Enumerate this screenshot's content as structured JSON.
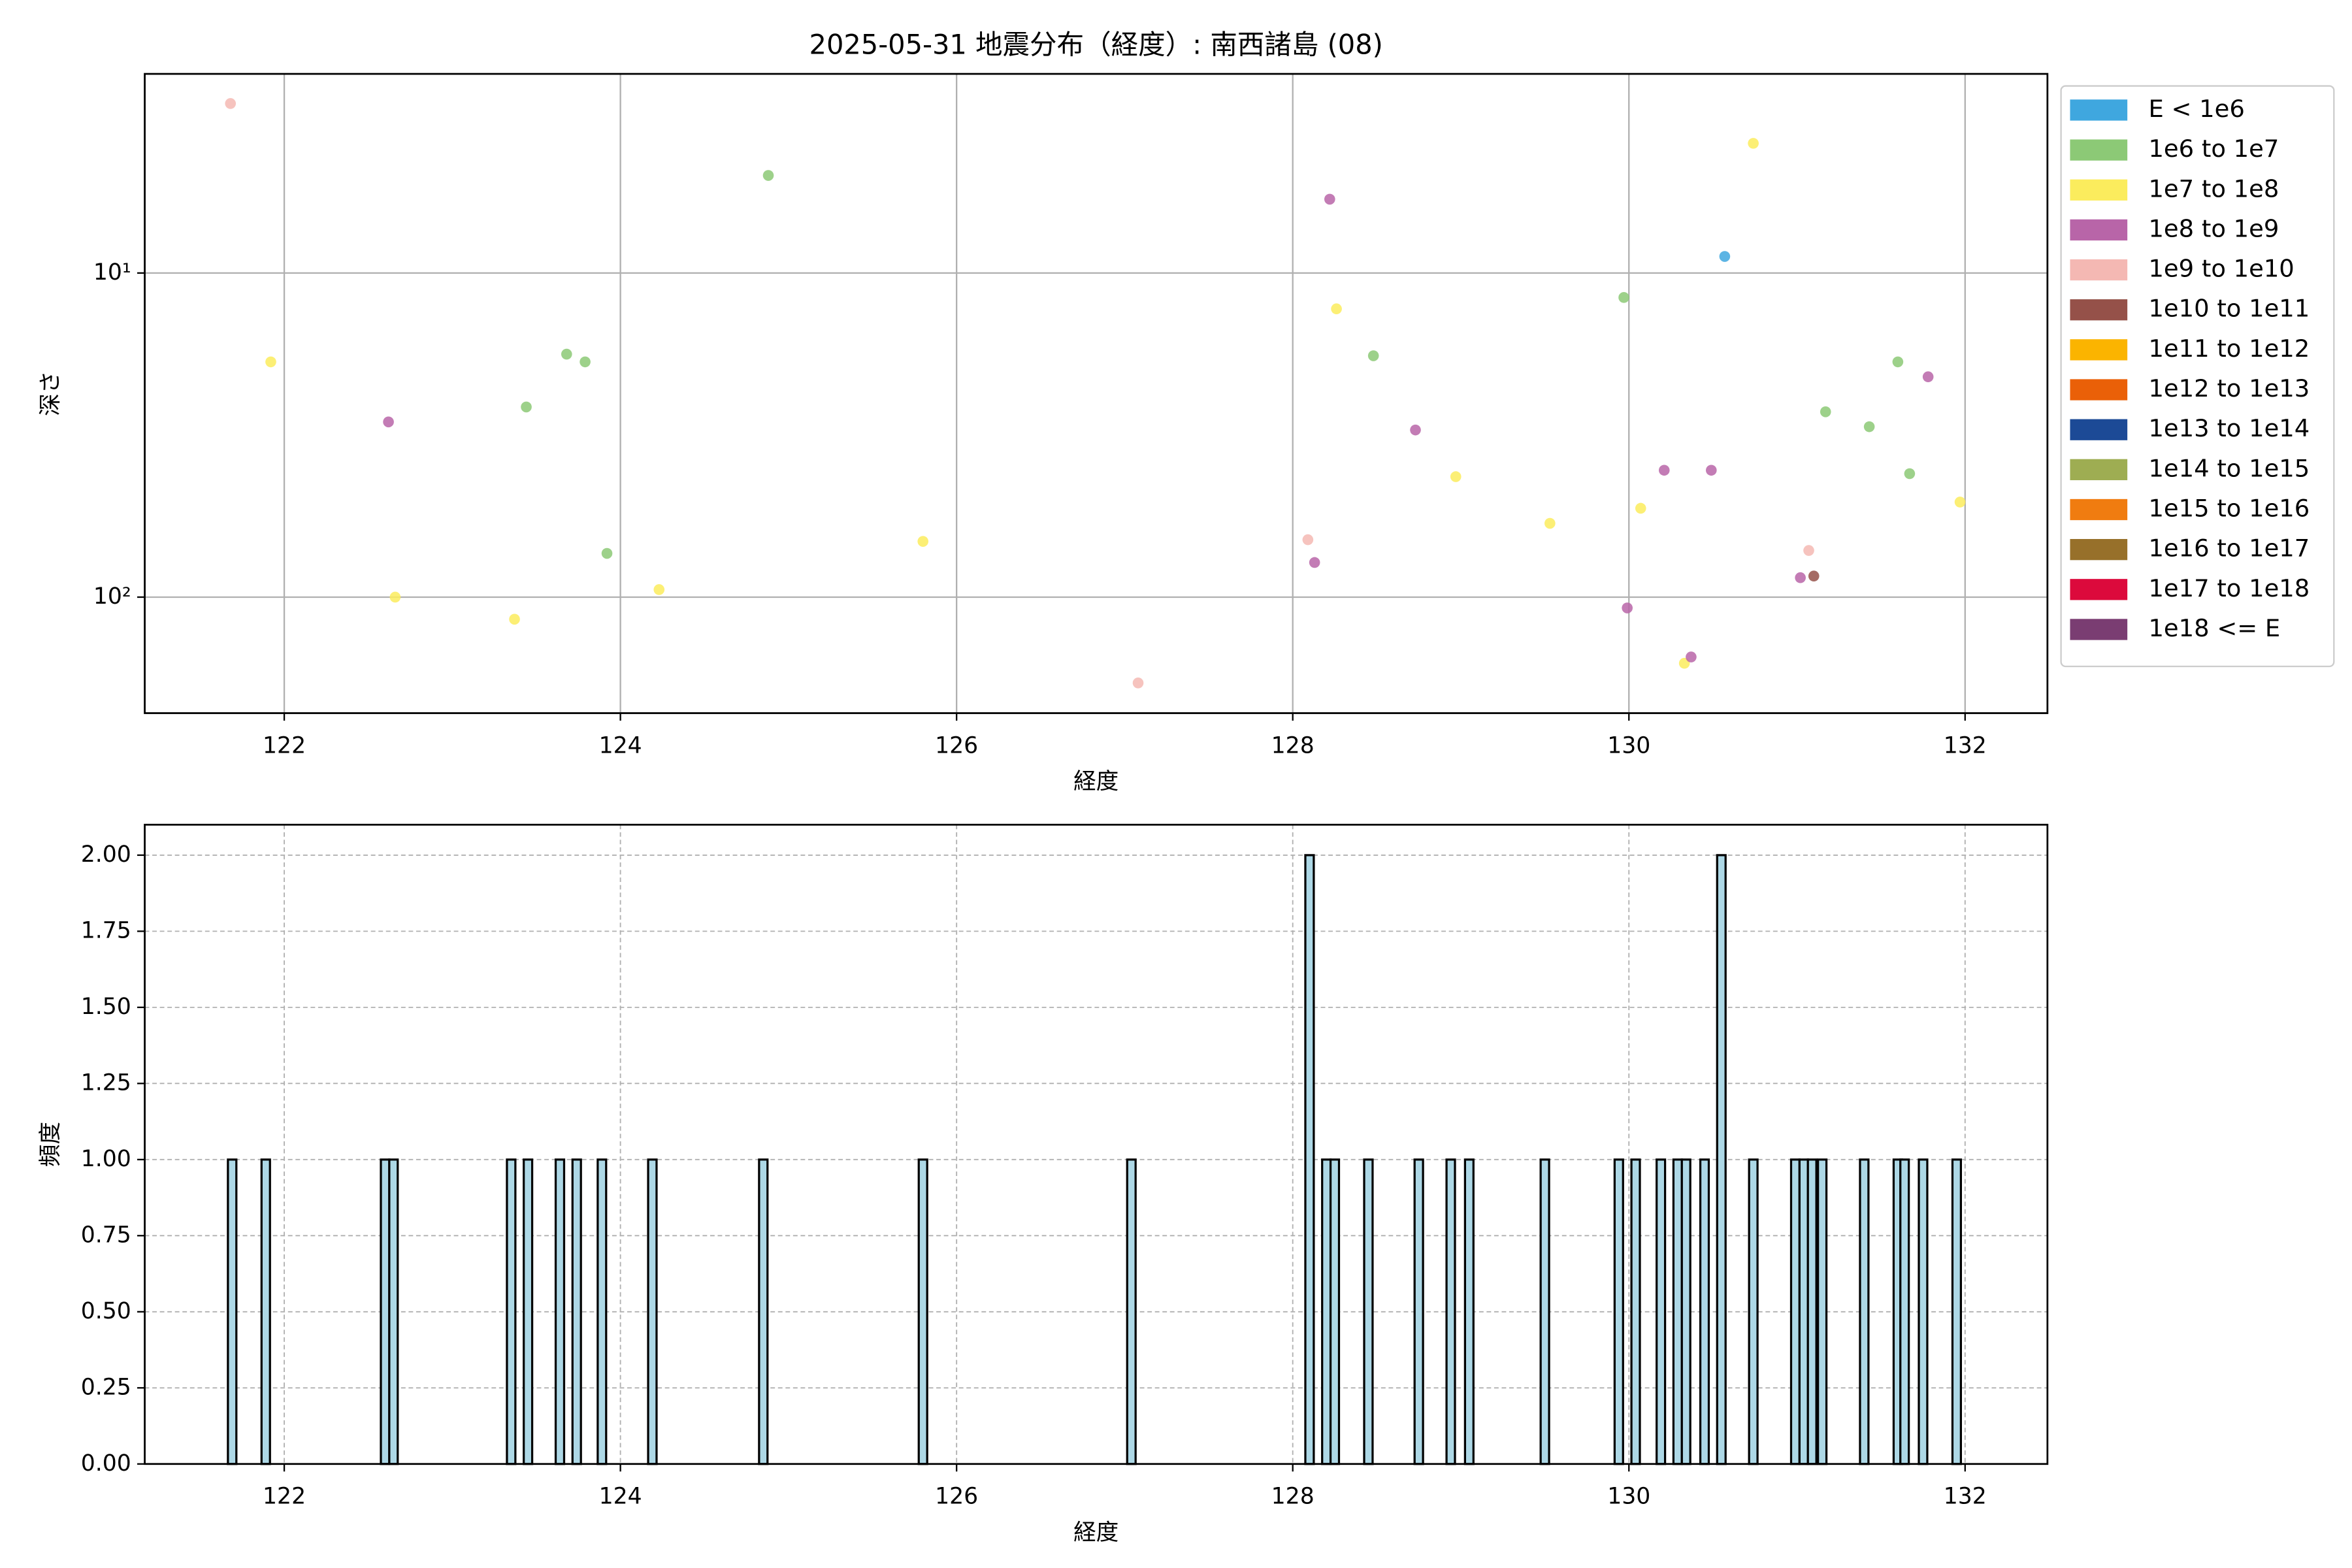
{
  "chart_data": [
    {
      "type": "scatter",
      "title": "2025-05-31 地震分布（経度）: 南西諸島 (08)",
      "xlabel": "経度",
      "ylabel": "深さ",
      "xlim": [
        121.17,
        132.49
      ],
      "ylim": [
        2.43,
        228
      ],
      "y_log": true,
      "y_inverted": true,
      "xticks": [
        122,
        124,
        126,
        128,
        130,
        132
      ],
      "yticks": [
        {
          "value": 10,
          "label": "10¹"
        },
        {
          "value": 100,
          "label": "10²"
        }
      ],
      "grid": "solid",
      "legend": "outside-right",
      "series": [
        {
          "name": "E < 1e6",
          "color": "#3fa7df",
          "x": [
            130.57
          ],
          "values": [
            8.89
          ]
        },
        {
          "name": "1e6 to 1e7",
          "color": "#8cc976",
          "x": [
            124.88,
            123.68,
            123.79,
            123.44,
            123.92,
            129.97,
            128.48,
            131.6,
            131.17,
            131.43,
            131.67
          ],
          "values": [
            5.0,
            17.8,
            18.8,
            25.9,
            73.3,
            11.9,
            18.0,
            18.8,
            26.8,
            29.8,
            41.6
          ]
        },
        {
          "name": "1e7 to 1e8",
          "color": "#fbec5d",
          "x": [
            121.92,
            122.66,
            123.37,
            124.23,
            125.8,
            130.74,
            128.26,
            128.97,
            129.53,
            130.07,
            130.33,
            131.97
          ],
          "values": [
            18.8,
            100,
            117,
            94.8,
            67.3,
            3.98,
            12.9,
            42.5,
            59.2,
            53.2,
            160,
            50.9
          ]
        },
        {
          "name": "1e8 to 1e9",
          "color": "#b865a8",
          "x": [
            122.62,
            128.22,
            128.73,
            128.13,
            130.21,
            130.49,
            131.02,
            129.99,
            130.37,
            131.78
          ],
          "values": [
            28.8,
            5.92,
            30.5,
            78.2,
            40.6,
            40.6,
            87.1,
            108,
            153,
            20.9
          ]
        },
        {
          "name": "1e9 to 1e10",
          "color": "#f4b8b3",
          "x": [
            121.68,
            128.09,
            131.07,
            127.08
          ],
          "values": [
            3.0,
            66.5,
            71.8,
            184
          ]
        },
        {
          "name": "1e10 to 1e11",
          "color": "#955149",
          "x": [
            131.1
          ],
          "values": [
            86.1
          ]
        },
        {
          "name": "1e11 to 1e12",
          "color": "#fbb400",
          "x": [],
          "values": []
        },
        {
          "name": "1e12 to 1e13",
          "color": "#ea6008",
          "x": [],
          "values": []
        },
        {
          "name": "1e13 to 1e14",
          "color": "#1c4a96",
          "x": [],
          "values": []
        },
        {
          "name": "1e14 to 1e15",
          "color": "#9ead52",
          "x": [],
          "values": []
        },
        {
          "name": "1e15 to 1e16",
          "color": "#f07c10",
          "x": [],
          "values": []
        },
        {
          "name": "1e16 to 1e17",
          "color": "#97702a",
          "x": [],
          "values": []
        },
        {
          "name": "1e17 to 1e18",
          "color": "#dc0a3c",
          "x": [],
          "values": []
        },
        {
          "name": "1e18 <= E",
          "color": "#7a3d72",
          "x": [],
          "values": []
        }
      ]
    },
    {
      "type": "bar",
      "xlabel": "経度",
      "ylabel": "頻度",
      "xlim": [
        121.17,
        132.49
      ],
      "ylim": [
        0,
        2.1
      ],
      "xticks": [
        122,
        124,
        126,
        128,
        130,
        132
      ],
      "yticks": [
        {
          "value": 0,
          "label": "0.00"
        },
        {
          "value": 0.25,
          "label": "0.25"
        },
        {
          "value": 0.5,
          "label": "0.50"
        },
        {
          "value": 0.75,
          "label": "0.75"
        },
        {
          "value": 1,
          "label": "1.00"
        },
        {
          "value": 1.25,
          "label": "1.25"
        },
        {
          "value": 1.5,
          "label": "1.50"
        },
        {
          "value": 1.75,
          "label": "1.75"
        },
        {
          "value": 2,
          "label": "2.00"
        }
      ],
      "grid": "dashed",
      "color": "#add8e6",
      "edgecolor": "#000000",
      "x": [
        121.69,
        121.89,
        122.6,
        122.65,
        123.35,
        123.45,
        123.64,
        123.74,
        123.89,
        124.19,
        124.85,
        125.8,
        127.04,
        128.1,
        128.2,
        128.25,
        128.45,
        128.75,
        128.94,
        129.05,
        129.5,
        129.94,
        130.04,
        130.19,
        130.29,
        130.34,
        130.45,
        130.55,
        130.74,
        130.99,
        131.04,
        131.09,
        131.15,
        131.4,
        131.6,
        131.64,
        131.75,
        131.95
      ],
      "values": [
        1,
        1,
        1,
        1,
        1,
        1,
        1,
        1,
        1,
        1,
        1,
        1,
        1,
        2,
        1,
        1,
        1,
        1,
        1,
        1,
        1,
        1,
        1,
        1,
        1,
        1,
        1,
        2,
        1,
        1,
        1,
        1,
        1,
        1,
        1,
        1,
        1,
        1
      ]
    }
  ]
}
